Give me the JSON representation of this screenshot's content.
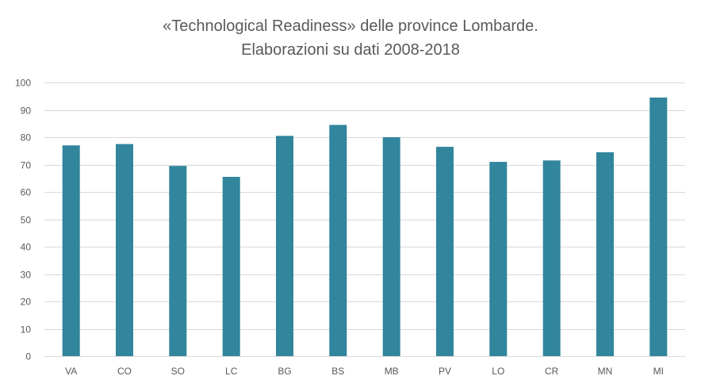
{
  "chart_data": {
    "type": "bar",
    "title_line1": "«Technological Readiness» delle province Lombarde.",
    "title_line2": "Elaborazioni su dati 2008-2018",
    "xlabel": "",
    "ylabel": "",
    "categories": [
      "VA",
      "CO",
      "SO",
      "LC",
      "BG",
      "BS",
      "MB",
      "PV",
      "LO",
      "CR",
      "MN",
      "MI"
    ],
    "values": [
      77,
      77.5,
      69.5,
      65.5,
      80.5,
      84.5,
      80,
      76.5,
      71,
      71.5,
      74.5,
      94.5
    ],
    "ylim": [
      0,
      100
    ],
    "yticks": [
      "0",
      "10",
      "20",
      "30",
      "40",
      "50",
      "60",
      "70",
      "80",
      "90",
      "100"
    ],
    "grid": true,
    "legend": "none",
    "bar_color": "#31859C",
    "grid_color": "#D9D9D9",
    "text_color": "#595959"
  }
}
